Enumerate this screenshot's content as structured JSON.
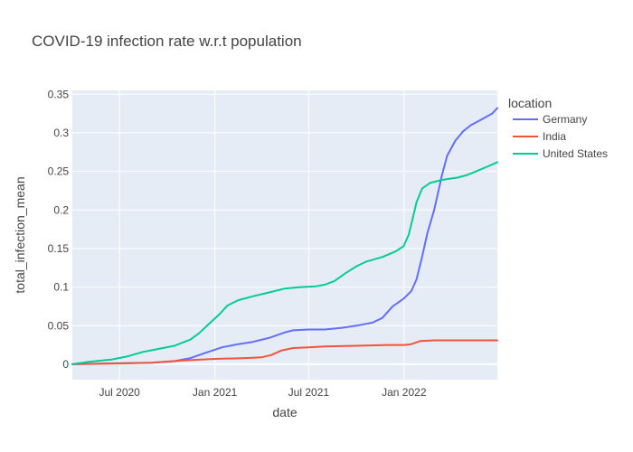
{
  "chart_data": {
    "type": "line",
    "title": "COVID-19 infection rate w.r.t population",
    "xlabel": "date",
    "ylabel": "total_infection_mean",
    "xlim": [
      "2020-04-01",
      "2022-06-30"
    ],
    "ylim": [
      -0.02,
      0.355
    ],
    "x_ticks": [
      {
        "date": "2020-07-01",
        "label": "Jul 2020"
      },
      {
        "date": "2021-01-01",
        "label": "Jan 2021"
      },
      {
        "date": "2021-07-01",
        "label": "Jul 2021"
      },
      {
        "date": "2022-01-01",
        "label": "Jan 2022"
      }
    ],
    "y_ticks": [
      0,
      0.05,
      0.1,
      0.15,
      0.2,
      0.25,
      0.3,
      0.35
    ],
    "y_tick_labels": [
      "0",
      "0.05",
      "0.1",
      "0.15",
      "0.2",
      "0.25",
      "0.3",
      "0.35"
    ],
    "grid": true,
    "legend_title": "location",
    "legend_position": "right",
    "series": [
      {
        "name": "Germany",
        "color": "#636efa",
        "points": [
          [
            "2020-04-01",
            0.0
          ],
          [
            "2020-06-01",
            0.001
          ],
          [
            "2020-09-01",
            0.002
          ],
          [
            "2020-10-15",
            0.004
          ],
          [
            "2020-11-15",
            0.008
          ],
          [
            "2020-12-15",
            0.015
          ],
          [
            "2021-01-15",
            0.022
          ],
          [
            "2021-02-15",
            0.026
          ],
          [
            "2021-03-15",
            0.029
          ],
          [
            "2021-04-15",
            0.034
          ],
          [
            "2021-05-15",
            0.041
          ],
          [
            "2021-06-01",
            0.044
          ],
          [
            "2021-07-01",
            0.045
          ],
          [
            "2021-08-01",
            0.045
          ],
          [
            "2021-09-01",
            0.047
          ],
          [
            "2021-10-01",
            0.05
          ],
          [
            "2021-11-01",
            0.054
          ],
          [
            "2021-11-20",
            0.06
          ],
          [
            "2021-12-10",
            0.075
          ],
          [
            "2021-12-31",
            0.085
          ],
          [
            "2022-01-15",
            0.095
          ],
          [
            "2022-01-25",
            0.11
          ],
          [
            "2022-02-05",
            0.14
          ],
          [
            "2022-02-15",
            0.17
          ],
          [
            "2022-02-28",
            0.2
          ],
          [
            "2022-03-15",
            0.245
          ],
          [
            "2022-03-25",
            0.27
          ],
          [
            "2022-04-10",
            0.29
          ],
          [
            "2022-04-25",
            0.302
          ],
          [
            "2022-05-10",
            0.31
          ],
          [
            "2022-06-01",
            0.318
          ],
          [
            "2022-06-20",
            0.325
          ],
          [
            "2022-06-30",
            0.332
          ]
        ]
      },
      {
        "name": "India",
        "color": "#ef553b",
        "points": [
          [
            "2020-04-01",
            0.0
          ],
          [
            "2020-07-01",
            0.001
          ],
          [
            "2020-09-01",
            0.002
          ],
          [
            "2020-11-01",
            0.005
          ],
          [
            "2021-01-01",
            0.007
          ],
          [
            "2021-03-01",
            0.008
          ],
          [
            "2021-04-01",
            0.009
          ],
          [
            "2021-04-20",
            0.012
          ],
          [
            "2021-05-10",
            0.018
          ],
          [
            "2021-06-01",
            0.021
          ],
          [
            "2021-07-01",
            0.022
          ],
          [
            "2021-08-01",
            0.023
          ],
          [
            "2021-10-01",
            0.024
          ],
          [
            "2021-12-01",
            0.025
          ],
          [
            "2022-01-01",
            0.025
          ],
          [
            "2022-01-15",
            0.026
          ],
          [
            "2022-02-01",
            0.03
          ],
          [
            "2022-03-01",
            0.031
          ],
          [
            "2022-06-30",
            0.031
          ]
        ]
      },
      {
        "name": "United States",
        "color": "#00cc96",
        "points": [
          [
            "2020-04-01",
            0.0
          ],
          [
            "2020-05-01",
            0.003
          ],
          [
            "2020-06-15",
            0.006
          ],
          [
            "2020-07-15",
            0.01
          ],
          [
            "2020-08-15",
            0.016
          ],
          [
            "2020-09-15",
            0.02
          ],
          [
            "2020-10-15",
            0.024
          ],
          [
            "2020-11-15",
            0.032
          ],
          [
            "2020-12-01",
            0.04
          ],
          [
            "2020-12-20",
            0.052
          ],
          [
            "2021-01-10",
            0.065
          ],
          [
            "2021-01-25",
            0.076
          ],
          [
            "2021-02-15",
            0.083
          ],
          [
            "2021-03-15",
            0.088
          ],
          [
            "2021-04-15",
            0.093
          ],
          [
            "2021-05-15",
            0.098
          ],
          [
            "2021-06-15",
            0.1
          ],
          [
            "2021-07-15",
            0.101
          ],
          [
            "2021-08-01",
            0.103
          ],
          [
            "2021-08-20",
            0.108
          ],
          [
            "2021-09-10",
            0.118
          ],
          [
            "2021-10-01",
            0.127
          ],
          [
            "2021-10-20",
            0.133
          ],
          [
            "2021-11-20",
            0.139
          ],
          [
            "2021-12-15",
            0.146
          ],
          [
            "2021-12-31",
            0.153
          ],
          [
            "2022-01-10",
            0.168
          ],
          [
            "2022-01-18",
            0.19
          ],
          [
            "2022-01-25",
            0.21
          ],
          [
            "2022-02-05",
            0.228
          ],
          [
            "2022-02-20",
            0.235
          ],
          [
            "2022-03-15",
            0.239
          ],
          [
            "2022-04-15",
            0.242
          ],
          [
            "2022-05-01",
            0.245
          ],
          [
            "2022-05-20",
            0.25
          ],
          [
            "2022-06-10",
            0.256
          ],
          [
            "2022-06-30",
            0.262
          ]
        ]
      }
    ]
  }
}
